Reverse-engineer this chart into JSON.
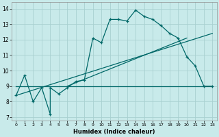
{
  "xlabel": "Humidex (Indice chaleur)",
  "bg_color": "#c8eaea",
  "grid_color": "#a8d0d0",
  "line_color": "#006868",
  "xlim": [
    -0.5,
    23.5
  ],
  "ylim": [
    6.8,
    14.4
  ],
  "xticks": [
    0,
    1,
    2,
    3,
    4,
    5,
    6,
    7,
    8,
    9,
    10,
    11,
    12,
    13,
    14,
    15,
    16,
    17,
    18,
    19,
    20,
    21,
    22,
    23
  ],
  "yticks": [
    7,
    8,
    9,
    10,
    11,
    12,
    13,
    14
  ],
  "series1_x": [
    0,
    1,
    2,
    3,
    4,
    4,
    5,
    6,
    7,
    8,
    9,
    10,
    11,
    12,
    13,
    14,
    15,
    16,
    17,
    18,
    19,
    20,
    21,
    22,
    23
  ],
  "series1_y": [
    8.4,
    9.7,
    8.0,
    8.9,
    7.2,
    8.9,
    8.5,
    8.9,
    9.3,
    9.4,
    12.1,
    11.8,
    13.3,
    13.3,
    13.2,
    13.9,
    13.5,
    13.3,
    12.9,
    12.4,
    12.1,
    10.9,
    10.3,
    9.0,
    9.0
  ],
  "series2_x": [
    0,
    23
  ],
  "series2_y": [
    9.0,
    9.0
  ],
  "series3_x": [
    0,
    23
  ],
  "series3_y": [
    8.4,
    12.4
  ],
  "series4_x": [
    6,
    20
  ],
  "series4_y": [
    9.0,
    12.1
  ]
}
